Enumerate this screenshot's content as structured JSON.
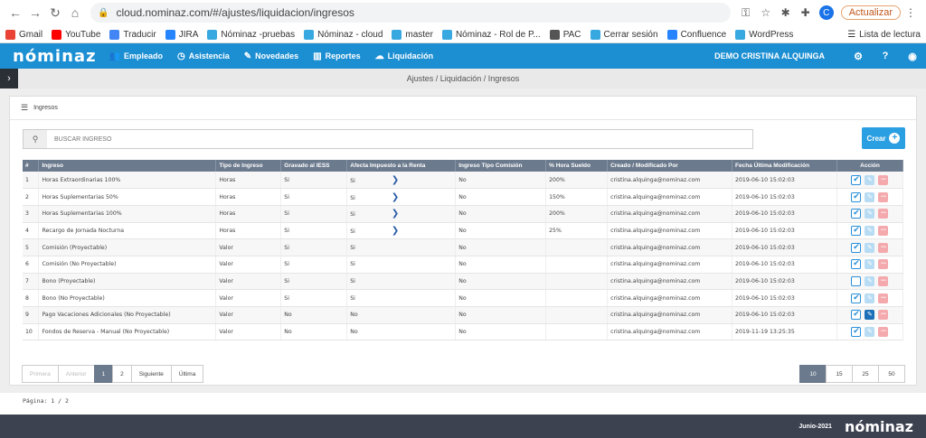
{
  "browser": {
    "url": "cloud.nominaz.com/#/ajustes/liquidacion/ingresos",
    "update_label": "Actualizar",
    "avatar_letter": "C",
    "reading_list": "Lista de lectura",
    "bookmarks": [
      {
        "label": "Gmail",
        "color": "#ea4335"
      },
      {
        "label": "YouTube",
        "color": "#ff0000"
      },
      {
        "label": "Traducir",
        "color": "#4285f4"
      },
      {
        "label": "JIRA",
        "color": "#2684ff"
      },
      {
        "label": "Nóminaz -pruebas",
        "color": "#38a8e0"
      },
      {
        "label": "Nóminaz - cloud",
        "color": "#38a8e0"
      },
      {
        "label": "master",
        "color": "#38a8e0"
      },
      {
        "label": "Nóminaz - Rol de P...",
        "color": "#38a8e0"
      },
      {
        "label": "PAC",
        "color": "#555555"
      },
      {
        "label": "Cerrar sesión",
        "color": "#38a8e0"
      },
      {
        "label": "Confluence",
        "color": "#2684ff"
      },
      {
        "label": "WordPress",
        "color": "#38a8e0"
      }
    ]
  },
  "app": {
    "logo": "nóminaz",
    "nav": [
      "Empleado",
      "Asistencia",
      "Novedades",
      "Reportes",
      "Liquidación"
    ],
    "user": "DEMO CRISTINA ALQUINGA",
    "breadcrumb": "Ajustes / Liquidación / Ingresos"
  },
  "panel": {
    "title": "Ingresos",
    "search_placeholder": "BUSCAR INGRESO",
    "create_label": "Crear"
  },
  "table": {
    "headers": [
      "#",
      "Ingreso",
      "Tipo de Ingreso",
      "Gravado al IESS",
      "Afecta Impuesto a la Renta",
      "Ingreso Tipo Comisión",
      "% Hora Sueldo",
      "Creado / Modificado Por",
      "Fecha Última Modificación",
      "Acción"
    ],
    "rows": [
      {
        "n": "1",
        "name": "Horas Extraordinarias 100%",
        "type": "Horas",
        "iess": "Si",
        "renta": "Si",
        "comision": "No",
        "hora": "200%",
        "by": "cristina.alquinga@nominaz.com",
        "date": "2019-06-10 15:02:03",
        "chev": true,
        "checked": true,
        "edit_active": false
      },
      {
        "n": "2",
        "name": "Horas Suplementarias 50%",
        "type": "Horas",
        "iess": "Si",
        "renta": "Si",
        "comision": "No",
        "hora": "150%",
        "by": "cristina.alquinga@nominaz.com",
        "date": "2019-06-10 15:02:03",
        "chev": true,
        "checked": true,
        "edit_active": false
      },
      {
        "n": "3",
        "name": "Horas Suplementarias 100%",
        "type": "Horas",
        "iess": "Si",
        "renta": "Si",
        "comision": "No",
        "hora": "200%",
        "by": "cristina.alquinga@nominaz.com",
        "date": "2019-06-10 15:02:03",
        "chev": true,
        "checked": true,
        "edit_active": false
      },
      {
        "n": "4",
        "name": "Recargo de Jornada Nocturna",
        "type": "Horas",
        "iess": "Si",
        "renta": "Si",
        "comision": "No",
        "hora": "25%",
        "by": "cristina.alquinga@nominaz.com",
        "date": "2019-06-10 15:02:03",
        "chev": true,
        "checked": true,
        "edit_active": false
      },
      {
        "n": "5",
        "name": "Comisión (Proyectable)",
        "type": "Valor",
        "iess": "Si",
        "renta": "Si",
        "comision": "No",
        "hora": "",
        "by": "cristina.alquinga@nominaz.com",
        "date": "2019-06-10 15:02:03",
        "chev": false,
        "checked": true,
        "edit_active": false
      },
      {
        "n": "6",
        "name": "Comisión (No Proyectable)",
        "type": "Valor",
        "iess": "Si",
        "renta": "Si",
        "comision": "No",
        "hora": "",
        "by": "cristina.alquinga@nominaz.com",
        "date": "2019-06-10 15:02:03",
        "chev": false,
        "checked": true,
        "edit_active": false
      },
      {
        "n": "7",
        "name": "Bono (Proyectable)",
        "type": "Valor",
        "iess": "Si",
        "renta": "Si",
        "comision": "No",
        "hora": "",
        "by": "cristina.alquinga@nominaz.com",
        "date": "2019-06-10 15:02:03",
        "chev": false,
        "checked": false,
        "edit_active": false
      },
      {
        "n": "8",
        "name": "Bono (No Proyectable)",
        "type": "Valor",
        "iess": "Si",
        "renta": "Si",
        "comision": "No",
        "hora": "",
        "by": "cristina.alquinga@nominaz.com",
        "date": "2019-06-10 15:02:03",
        "chev": false,
        "checked": true,
        "edit_active": false
      },
      {
        "n": "9",
        "name": "Pago Vacaciones Adicionales (No Proyectable)",
        "type": "Valor",
        "iess": "No",
        "renta": "No",
        "comision": "No",
        "hora": "",
        "by": "cristina.alquinga@nominaz.com",
        "date": "2019-06-10 15:02:03",
        "chev": false,
        "checked": true,
        "edit_active": true
      },
      {
        "n": "10",
        "name": "Fondos de Reserva - Manual (No Proyectable)",
        "type": "Valor",
        "iess": "No",
        "renta": "No",
        "comision": "No",
        "hora": "",
        "by": "cristina.alquinga@nominaz.com",
        "date": "2019-11-19 13:25:35",
        "chev": false,
        "checked": true,
        "edit_active": false
      }
    ]
  },
  "pagination": {
    "first": "Primera",
    "prev": "Anterior",
    "pages": [
      "1",
      "2"
    ],
    "current": "1",
    "next": "Siguiente",
    "last": "Última",
    "sizes": [
      "10",
      "15",
      "25",
      "50"
    ],
    "current_size": "10",
    "info": "Página: 1 / 2"
  },
  "footer": {
    "date": "Junio-2021",
    "logo": "nóminaz"
  },
  "colors": {
    "nav_bg": "#1c8fd3",
    "table_header": "#6b7a8d",
    "footer_bg": "#3d4250",
    "create_btn": "#2a9fe1"
  }
}
